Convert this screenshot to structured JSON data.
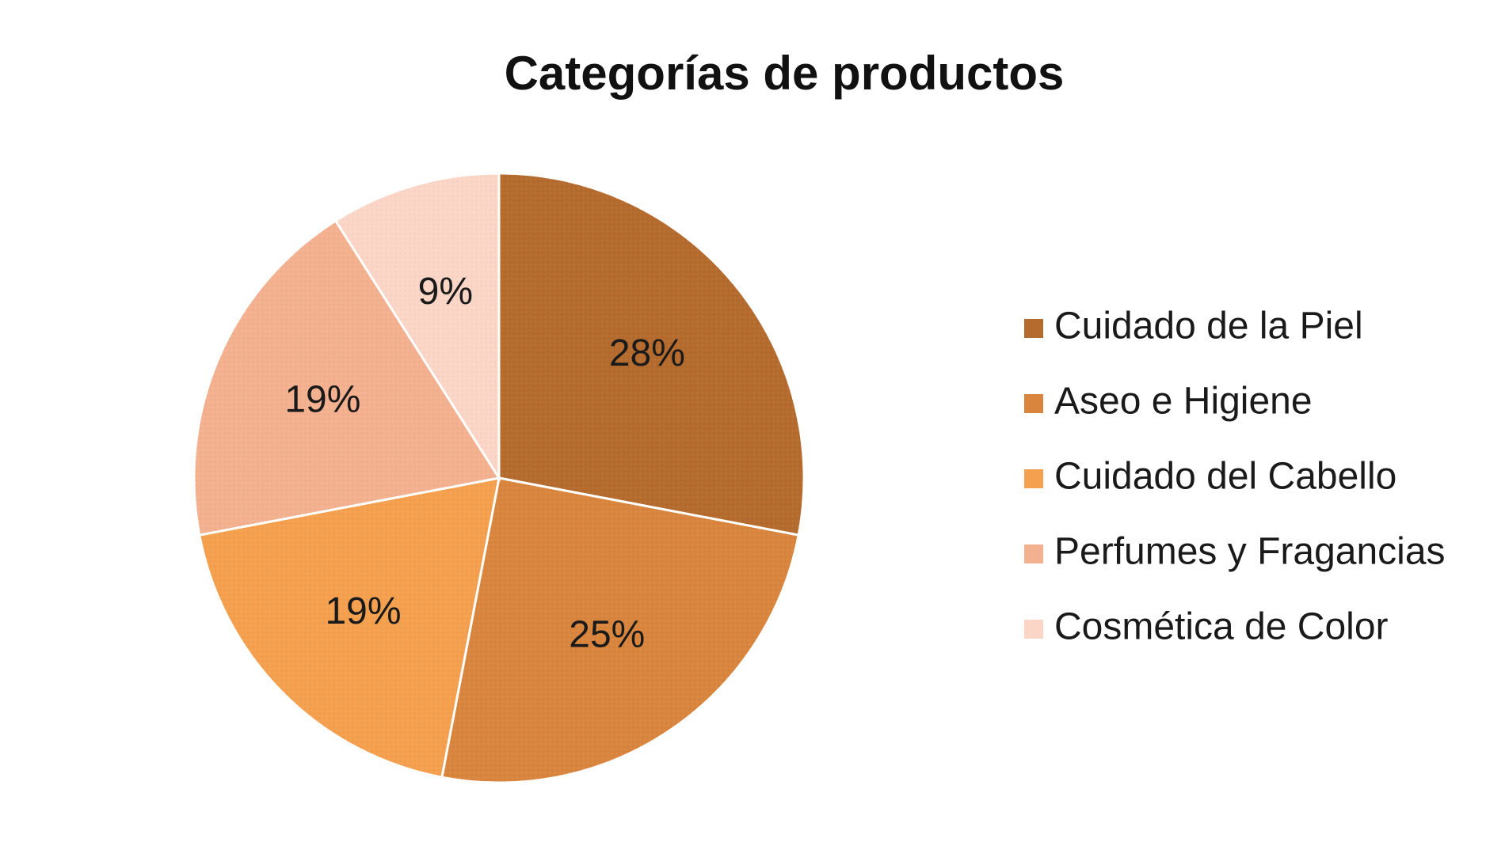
{
  "chart_data": {
    "type": "pie",
    "title": "Categorías de productos",
    "categories": [
      "Cuidado de la Piel",
      "Aseo e Higiene",
      "Cuidado del Cabello",
      "Perfumes y Fragancias",
      "Cosmética de Color"
    ],
    "values": [
      28,
      25,
      19,
      19,
      9
    ],
    "value_labels": [
      "28%",
      "25%",
      "19%",
      "19%",
      "9%"
    ],
    "colors": [
      "#b56b2e",
      "#d9853d",
      "#f4a04f",
      "#f4b190",
      "#fbd6c6"
    ],
    "start_angle": "12 o'clock",
    "direction": "clockwise",
    "legend_position": "right",
    "grid": false
  }
}
